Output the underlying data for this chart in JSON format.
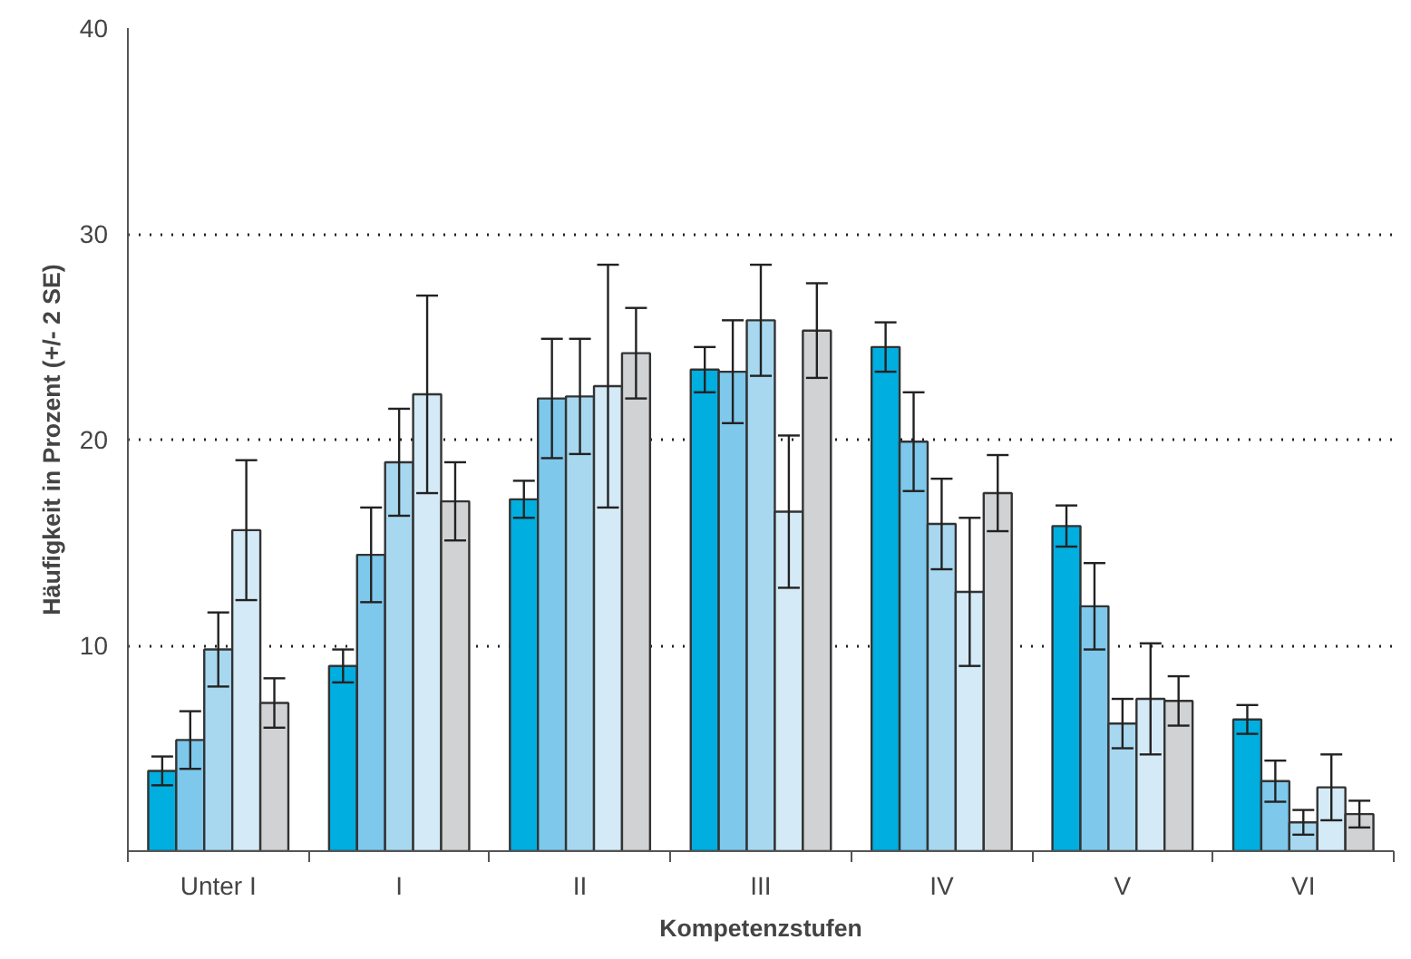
{
  "chart_data": {
    "type": "bar",
    "xlabel": "Kompetenzstufen",
    "ylabel": "Häufigkeit in Prozent (+/- 2 SE)",
    "categories": [
      "Unter I",
      "I",
      "II",
      "III",
      "IV",
      "V",
      "VI"
    ],
    "series": [
      {
        "color": "#00aee0",
        "values": [
          3.9,
          9.0,
          17.1,
          23.4,
          24.5,
          15.8,
          6.4
        ],
        "errors": [
          0.7,
          0.8,
          0.9,
          1.1,
          1.2,
          1.0,
          0.7
        ]
      },
      {
        "color": "#7ec8ec",
        "values": [
          5.4,
          14.4,
          22.0,
          23.3,
          19.9,
          11.9,
          3.4
        ],
        "errors": [
          1.4,
          2.3,
          2.9,
          2.5,
          2.4,
          2.1,
          1.0
        ]
      },
      {
        "color": "#a8d8f0",
        "values": [
          9.8,
          18.9,
          22.1,
          25.8,
          15.9,
          6.2,
          1.4
        ],
        "errors": [
          1.8,
          2.6,
          2.8,
          2.7,
          2.2,
          1.2,
          0.6
        ]
      },
      {
        "color": "#d4eaf7",
        "values": [
          15.6,
          22.2,
          22.6,
          16.5,
          12.6,
          7.4,
          3.1
        ],
        "errors": [
          3.4,
          4.8,
          5.9,
          3.7,
          3.6,
          2.7,
          1.6
        ]
      },
      {
        "color": "#d1d2d4",
        "values": [
          7.2,
          17.0,
          24.2,
          25.3,
          17.4,
          7.3,
          1.8
        ],
        "errors": [
          1.2,
          1.9,
          2.2,
          2.3,
          1.85,
          1.2,
          0.65
        ]
      }
    ],
    "ylim": [
      0,
      40
    ],
    "yticks": [
      {
        "value": 0,
        "label": null
      },
      10,
      20,
      30,
      40
    ],
    "grid": "y"
  }
}
